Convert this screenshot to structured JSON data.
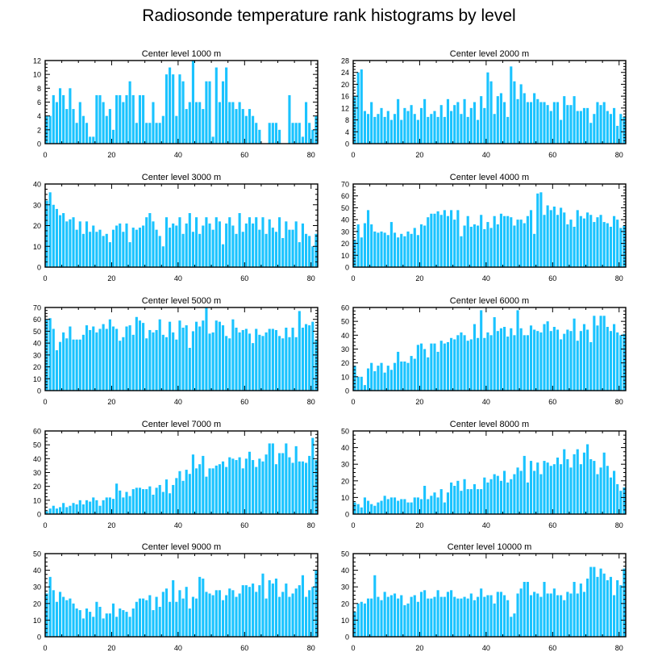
{
  "figure": {
    "title": "Radiosonde temperature rank histograms by level",
    "bar_color": "#1AC3FF",
    "axis_color": "#000000"
  },
  "chart_data": [
    {
      "type": "bar",
      "title": "Center level 1000 m",
      "xlabel": "",
      "ylabel": "",
      "xlim": [
        0,
        82
      ],
      "ylim": [
        0,
        12
      ],
      "xticks": [
        0,
        20,
        40,
        60,
        80
      ],
      "yticks": [
        0,
        2,
        4,
        6,
        8,
        10,
        12
      ],
      "values": [
        4,
        4,
        7,
        6,
        8,
        7,
        5,
        8,
        5,
        3,
        6,
        4,
        3,
        1,
        1,
        7,
        7,
        6,
        4,
        5,
        2,
        7,
        7,
        6,
        7,
        9,
        7,
        3,
        7,
        7,
        3,
        3,
        6,
        3,
        3,
        4,
        10,
        11,
        10,
        4,
        10,
        9,
        5,
        6,
        12,
        6,
        6,
        5,
        9,
        9,
        1,
        11,
        6,
        9,
        11,
        6,
        6,
        5,
        6,
        5,
        4,
        5,
        4,
        3,
        2,
        0,
        0,
        3,
        3,
        3,
        2,
        0,
        0,
        7,
        3,
        3,
        3,
        1,
        6,
        3,
        2,
        4
      ]
    },
    {
      "type": "bar",
      "title": "Center level 2000 m",
      "xlabel": "",
      "ylabel": "",
      "xlim": [
        0,
        82
      ],
      "ylim": [
        0,
        28
      ],
      "xticks": [
        0,
        20,
        40,
        60,
        80
      ],
      "yticks": [
        0,
        4,
        8,
        12,
        16,
        20,
        24,
        28
      ],
      "values": [
        16,
        24,
        25,
        11,
        10,
        14,
        9,
        10,
        12,
        9,
        11,
        8,
        10,
        15,
        8,
        12,
        11,
        13,
        10,
        8,
        12,
        15,
        9,
        10,
        11,
        9,
        13,
        9,
        15,
        11,
        13,
        14,
        10,
        15,
        9,
        12,
        14,
        8,
        16,
        12,
        24,
        21,
        10,
        16,
        17,
        14,
        9,
        26,
        21,
        15,
        20,
        17,
        14,
        14,
        17,
        15,
        14,
        14,
        13,
        11,
        14,
        14,
        8,
        16,
        13,
        13,
        16,
        11,
        11,
        12,
        12,
        7,
        10,
        14,
        13,
        14,
        11,
        10,
        12,
        6,
        10,
        9
      ]
    },
    {
      "type": "bar",
      "title": "Center level 3000 m",
      "xlabel": "",
      "ylabel": "",
      "xlim": [
        0,
        82
      ],
      "ylim": [
        0,
        40
      ],
      "xticks": [
        0,
        20,
        40,
        60,
        80
      ],
      "yticks": [
        0,
        10,
        20,
        30,
        40
      ],
      "values": [
        32,
        36,
        30,
        28,
        25,
        26,
        22,
        23,
        24,
        18,
        22,
        16,
        22,
        17,
        20,
        17,
        18,
        15,
        16,
        12,
        18,
        20,
        21,
        17,
        21,
        12,
        19,
        18,
        19,
        20,
        24,
        26,
        22,
        18,
        15,
        10,
        24,
        19,
        21,
        20,
        24,
        16,
        21,
        26,
        17,
        24,
        16,
        20,
        24,
        21,
        18,
        24,
        22,
        11,
        21,
        24,
        20,
        16,
        26,
        17,
        21,
        24,
        21,
        24,
        18,
        24,
        16,
        23,
        19,
        17,
        24,
        14,
        22,
        18,
        18,
        22,
        12,
        21,
        16,
        15,
        10,
        16
      ]
    },
    {
      "type": "bar",
      "title": "Center level 4000 m",
      "xlabel": "",
      "ylabel": "",
      "xlim": [
        0,
        82
      ],
      "ylim": [
        0,
        70
      ],
      "xticks": [
        0,
        20,
        40,
        60,
        80
      ],
      "yticks": [
        0,
        10,
        20,
        30,
        40,
        50,
        60,
        70
      ],
      "values": [
        23,
        36,
        25,
        37,
        48,
        36,
        30,
        29,
        30,
        29,
        27,
        38,
        29,
        25,
        28,
        26,
        30,
        28,
        33,
        27,
        36,
        35,
        42,
        45,
        45,
        47,
        44,
        48,
        43,
        48,
        40,
        48,
        26,
        35,
        43,
        34,
        36,
        35,
        44,
        32,
        38,
        33,
        43,
        36,
        45,
        43,
        43,
        42,
        35,
        40,
        40,
        37,
        43,
        48,
        28,
        62,
        63,
        44,
        52,
        48,
        51,
        44,
        50,
        46,
        36,
        40,
        34,
        48,
        43,
        41,
        46,
        44,
        38,
        42,
        44,
        38,
        37,
        34,
        43,
        40,
        33,
        35
      ]
    },
    {
      "type": "bar",
      "title": "Center level 5000 m",
      "xlabel": "",
      "ylabel": "",
      "xlim": [
        0,
        82
      ],
      "ylim": [
        0,
        70
      ],
      "xticks": [
        0,
        20,
        40,
        60,
        80
      ],
      "yticks": [
        0,
        10,
        20,
        30,
        40,
        50,
        60,
        70
      ],
      "values": [
        60,
        61,
        52,
        34,
        41,
        49,
        44,
        54,
        43,
        43,
        43,
        47,
        55,
        51,
        54,
        49,
        52,
        56,
        52,
        60,
        54,
        52,
        42,
        45,
        54,
        55,
        47,
        62,
        59,
        57,
        44,
        51,
        49,
        51,
        60,
        47,
        45,
        58,
        49,
        43,
        59,
        53,
        55,
        36,
        50,
        58,
        54,
        59,
        71,
        48,
        49,
        59,
        58,
        55,
        46,
        44,
        60,
        53,
        49,
        51,
        52,
        48,
        40,
        52,
        47,
        46,
        49,
        52,
        52,
        51,
        46,
        44,
        53,
        45,
        53,
        45,
        67,
        53,
        56,
        55,
        58,
        43
      ]
    },
    {
      "type": "bar",
      "title": "Center level 6000 m",
      "xlabel": "",
      "ylabel": "",
      "xlim": [
        0,
        82
      ],
      "ylim": [
        0,
        60
      ],
      "xticks": [
        0,
        20,
        40,
        60,
        80
      ],
      "yticks": [
        0,
        10,
        20,
        30,
        40,
        50,
        60
      ],
      "values": [
        18,
        10,
        10,
        4,
        16,
        20,
        14,
        18,
        20,
        13,
        18,
        15,
        20,
        28,
        21,
        21,
        20,
        25,
        23,
        33,
        34,
        30,
        24,
        34,
        34,
        28,
        36,
        34,
        35,
        38,
        37,
        40,
        42,
        40,
        36,
        37,
        48,
        38,
        58,
        38,
        42,
        40,
        53,
        43,
        45,
        46,
        39,
        45,
        40,
        58,
        45,
        40,
        40,
        47,
        44,
        43,
        42,
        48,
        50,
        43,
        46,
        44,
        37,
        41,
        44,
        43,
        52,
        36,
        43,
        48,
        44,
        35,
        54,
        47,
        54,
        54,
        46,
        43,
        48,
        42,
        40,
        41
      ]
    },
    {
      "type": "bar",
      "title": "Center level 7000 m",
      "xlabel": "",
      "ylabel": "",
      "xlim": [
        0,
        82
      ],
      "ylim": [
        0,
        60
      ],
      "xticks": [
        0,
        20,
        40,
        60,
        80
      ],
      "yticks": [
        0,
        10,
        20,
        30,
        40,
        50,
        60
      ],
      "values": [
        2,
        4,
        6,
        4,
        5,
        8,
        5,
        6,
        8,
        7,
        10,
        7,
        10,
        9,
        12,
        10,
        6,
        10,
        12,
        12,
        11,
        22,
        17,
        12,
        16,
        13,
        18,
        19,
        19,
        18,
        18,
        20,
        14,
        19,
        21,
        16,
        25,
        15,
        21,
        26,
        31,
        24,
        32,
        29,
        43,
        33,
        36,
        42,
        27,
        33,
        33,
        35,
        36,
        38,
        34,
        41,
        40,
        39,
        41,
        33,
        40,
        45,
        39,
        34,
        40,
        38,
        43,
        51,
        51,
        36,
        44,
        44,
        51,
        41,
        37,
        49,
        38,
        38,
        37,
        42,
        55,
        39
      ]
    },
    {
      "type": "bar",
      "title": "Center level 8000 m",
      "xlabel": "",
      "ylabel": "",
      "xlim": [
        0,
        82
      ],
      "ylim": [
        0,
        50
      ],
      "xticks": [
        0,
        20,
        40,
        60,
        80
      ],
      "yticks": [
        0,
        10,
        20,
        30,
        40,
        50
      ],
      "values": [
        7,
        6,
        4,
        10,
        8,
        6,
        5,
        7,
        8,
        11,
        9,
        10,
        10,
        8,
        9,
        9,
        7,
        7,
        10,
        10,
        9,
        17,
        9,
        11,
        13,
        10,
        15,
        7,
        13,
        19,
        17,
        20,
        14,
        21,
        15,
        15,
        18,
        15,
        15,
        22,
        19,
        21,
        24,
        23,
        20,
        26,
        19,
        21,
        24,
        28,
        26,
        35,
        19,
        32,
        26,
        31,
        24,
        32,
        31,
        29,
        30,
        34,
        30,
        39,
        33,
        28,
        36,
        39,
        30,
        37,
        42,
        33,
        32,
        24,
        28,
        37,
        29,
        22,
        26,
        18,
        14,
        16
      ]
    },
    {
      "type": "bar",
      "title": "Center level 9000 m",
      "xlabel": "",
      "ylabel": "",
      "xlim": [
        0,
        82
      ],
      "ylim": [
        0,
        50
      ],
      "xticks": [
        0,
        20,
        40,
        60,
        80
      ],
      "yticks": [
        0,
        10,
        20,
        30,
        40,
        50
      ],
      "values": [
        26,
        36,
        28,
        21,
        27,
        24,
        22,
        23,
        20,
        17,
        16,
        11,
        17,
        15,
        12,
        21,
        18,
        11,
        14,
        14,
        20,
        12,
        17,
        16,
        15,
        12,
        17,
        21,
        23,
        23,
        22,
        25,
        16,
        24,
        18,
        27,
        29,
        21,
        34,
        21,
        28,
        23,
        30,
        17,
        24,
        23,
        36,
        35,
        27,
        26,
        25,
        28,
        28,
        22,
        25,
        29,
        28,
        24,
        26,
        31,
        31,
        30,
        32,
        27,
        31,
        38,
        23,
        34,
        32,
        35,
        24,
        27,
        32,
        24,
        26,
        29,
        31,
        37,
        24,
        28,
        30,
        40
      ]
    },
    {
      "type": "bar",
      "title": "Center level 10000 m",
      "xlabel": "",
      "ylabel": "",
      "xlim": [
        0,
        82
      ],
      "ylim": [
        0,
        50
      ],
      "xticks": [
        0,
        20,
        40,
        60,
        80
      ],
      "yticks": [
        0,
        10,
        20,
        30,
        40,
        50
      ],
      "values": [
        15,
        20,
        21,
        20,
        23,
        23,
        37,
        24,
        22,
        27,
        24,
        25,
        26,
        23,
        25,
        19,
        20,
        24,
        25,
        21,
        27,
        28,
        23,
        23,
        24,
        28,
        24,
        24,
        27,
        28,
        24,
        23,
        23,
        24,
        23,
        26,
        22,
        24,
        29,
        24,
        25,
        25,
        20,
        27,
        27,
        25,
        22,
        12,
        14,
        26,
        29,
        33,
        33,
        25,
        27,
        26,
        24,
        33,
        26,
        26,
        29,
        25,
        25,
        22,
        27,
        26,
        33,
        26,
        32,
        27,
        35,
        42,
        42,
        36,
        41,
        38,
        34,
        36,
        25,
        34,
        31,
        41
      ]
    }
  ]
}
